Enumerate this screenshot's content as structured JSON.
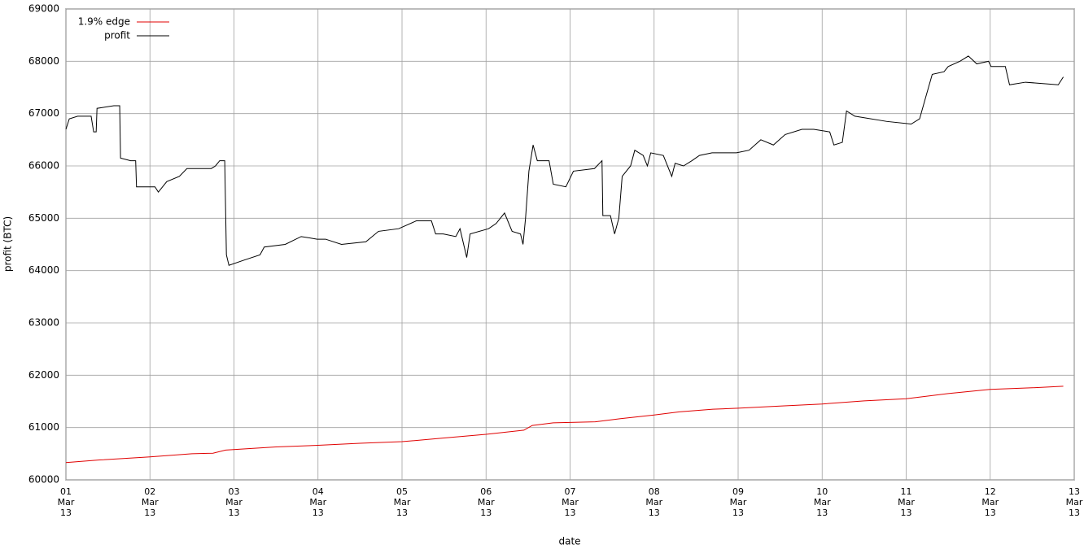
{
  "chart_data": {
    "type": "line",
    "x_label": "date",
    "y_label": "profit (BTC)",
    "xlim": [
      1,
      13
    ],
    "ylim": [
      60000,
      69000
    ],
    "xticks": [
      {
        "value": 1,
        "label": "01\nMar\n13"
      },
      {
        "value": 2,
        "label": "02\nMar\n13"
      },
      {
        "value": 3,
        "label": "03\nMar\n13"
      },
      {
        "value": 4,
        "label": "04\nMar\n13"
      },
      {
        "value": 5,
        "label": "05\nMar\n13"
      },
      {
        "value": 6,
        "label": "06\nMar\n13"
      },
      {
        "value": 7,
        "label": "07\nMar\n13"
      },
      {
        "value": 8,
        "label": "08\nMar\n13"
      },
      {
        "value": 9,
        "label": "09\nMar\n13"
      },
      {
        "value": 10,
        "label": "10\nMar\n13"
      },
      {
        "value": 11,
        "label": "11\nMar\n13"
      },
      {
        "value": 12,
        "label": "12\nMar\n13"
      },
      {
        "value": 13,
        "label": "13\nMar\n13"
      }
    ],
    "yticks": [
      60000,
      61000,
      62000,
      63000,
      64000,
      65000,
      66000,
      67000,
      68000,
      69000
    ],
    "grid": true,
    "legend": "top-left",
    "series": [
      {
        "name": "1.9% edge",
        "color": "#e00000",
        "x": [
          1.0,
          1.4,
          2.0,
          2.5,
          2.75,
          2.9,
          3.5,
          4.0,
          4.5,
          5.0,
          5.5,
          6.0,
          6.45,
          6.55,
          6.8,
          7.3,
          7.6,
          8.0,
          8.3,
          8.7,
          9.0,
          9.5,
          10.0,
          10.5,
          11.0,
          11.5,
          12.0,
          12.5,
          12.87
        ],
        "values": [
          60330,
          60380,
          60440,
          60500,
          60510,
          60570,
          60630,
          60660,
          60700,
          60730,
          60800,
          60870,
          60950,
          61040,
          61090,
          61110,
          61170,
          61240,
          61300,
          61350,
          61370,
          61410,
          61450,
          61510,
          61550,
          61650,
          61730,
          61760,
          61790
        ]
      },
      {
        "name": "profit",
        "color": "#000000",
        "x": [
          1.0,
          1.04,
          1.14,
          1.3,
          1.33,
          1.36,
          1.37,
          1.57,
          1.64,
          1.65,
          1.77,
          1.83,
          1.84,
          2.06,
          2.1,
          2.2,
          2.35,
          2.44,
          2.73,
          2.78,
          2.83,
          2.89,
          2.91,
          2.94,
          3.12,
          3.31,
          3.36,
          3.61,
          3.8,
          3.99,
          4.09,
          4.28,
          4.57,
          4.72,
          4.96,
          5.17,
          5.35,
          5.4,
          5.49,
          5.64,
          5.69,
          5.77,
          5.81,
          6.03,
          6.12,
          6.22,
          6.31,
          6.41,
          6.44,
          6.47,
          6.51,
          6.56,
          6.61,
          6.75,
          6.8,
          6.95,
          7.04,
          7.29,
          7.38,
          7.39,
          7.48,
          7.53,
          7.58,
          7.62,
          7.72,
          7.77,
          7.87,
          7.92,
          7.96,
          8.11,
          8.21,
          8.25,
          8.35,
          8.45,
          8.54,
          8.69,
          8.98,
          9.13,
          9.27,
          9.42,
          9.56,
          9.76,
          9.9,
          10.09,
          10.14,
          10.24,
          10.29,
          10.39,
          10.77,
          11.06,
          11.16,
          11.23,
          11.31,
          11.45,
          11.5,
          11.64,
          11.74,
          11.84,
          11.98,
          12.01,
          12.18,
          12.23,
          12.42,
          12.81,
          12.87
        ],
        "values": [
          66700,
          66900,
          66950,
          66950,
          66650,
          66650,
          67100,
          67150,
          67150,
          66150,
          66100,
          66100,
          65600,
          65600,
          65500,
          65700,
          65800,
          65950,
          65950,
          66000,
          66100,
          66100,
          64300,
          64100,
          64200,
          64300,
          64450,
          64500,
          64650,
          64600,
          64600,
          64500,
          64550,
          64750,
          64800,
          64950,
          64950,
          64700,
          64700,
          64650,
          64800,
          64250,
          64700,
          64800,
          64900,
          65100,
          64750,
          64700,
          64500,
          65000,
          65900,
          66400,
          66100,
          66100,
          65650,
          65600,
          65900,
          65950,
          66100,
          65050,
          65050,
          64700,
          65000,
          65800,
          66000,
          66300,
          66200,
          66000,
          66250,
          66200,
          65800,
          66050,
          66000,
          66100,
          66200,
          66250,
          66250,
          66300,
          66500,
          66400,
          66600,
          66700,
          66700,
          66650,
          66400,
          66450,
          67050,
          66950,
          66850,
          66800,
          66900,
          67300,
          67750,
          67800,
          67900,
          68000,
          68100,
          67950,
          68000,
          67900,
          67900,
          67550,
          67600,
          67550,
          67700
        ]
      }
    ]
  }
}
